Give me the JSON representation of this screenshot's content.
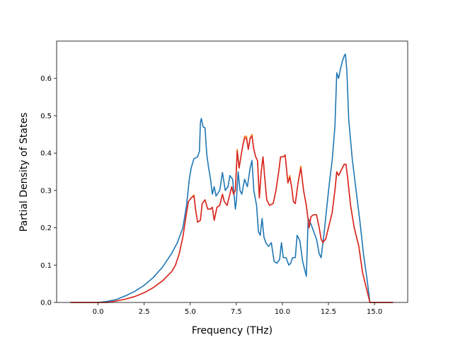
{
  "chart_data": {
    "type": "line",
    "title": "",
    "xlabel": "Frequency (THz)",
    "ylabel": "Partial Density of States",
    "xlim": [
      -2.25,
      16.8
    ],
    "ylim": [
      0.0,
      0.7
    ],
    "xticks": [
      0.0,
      2.5,
      5.0,
      7.5,
      10.0,
      12.5,
      15.0
    ],
    "xtick_labels": [
      "0.0",
      "2.5",
      "5.0",
      "7.5",
      "10.0",
      "12.5",
      "15.0"
    ],
    "yticks": [
      0.0,
      0.1,
      0.2,
      0.3,
      0.4,
      0.5,
      0.6
    ],
    "ytick_labels": [
      "0.0",
      "0.1",
      "0.2",
      "0.3",
      "0.4",
      "0.5",
      "0.6"
    ],
    "grid": false,
    "legend": false,
    "series": [
      {
        "color": "#1f77b4",
        "points": [
          [
            -1.5,
            0.0
          ],
          [
            0.0,
            0.0
          ],
          [
            0.5,
            0.003
          ],
          [
            1.0,
            0.008
          ],
          [
            1.5,
            0.018
          ],
          [
            2.0,
            0.03
          ],
          [
            2.5,
            0.046
          ],
          [
            3.0,
            0.067
          ],
          [
            3.5,
            0.095
          ],
          [
            4.0,
            0.132
          ],
          [
            4.3,
            0.16
          ],
          [
            4.6,
            0.2
          ],
          [
            4.8,
            0.26
          ],
          [
            4.95,
            0.33
          ],
          [
            5.05,
            0.36
          ],
          [
            5.2,
            0.385
          ],
          [
            5.4,
            0.39
          ],
          [
            5.5,
            0.405
          ],
          [
            5.55,
            0.48
          ],
          [
            5.6,
            0.493
          ],
          [
            5.7,
            0.47
          ],
          [
            5.8,
            0.468
          ],
          [
            5.9,
            0.395
          ],
          [
            6.0,
            0.36
          ],
          [
            6.1,
            0.33
          ],
          [
            6.2,
            0.29
          ],
          [
            6.3,
            0.31
          ],
          [
            6.4,
            0.285
          ],
          [
            6.6,
            0.3
          ],
          [
            6.75,
            0.348
          ],
          [
            6.9,
            0.3
          ],
          [
            7.05,
            0.31
          ],
          [
            7.15,
            0.34
          ],
          [
            7.3,
            0.33
          ],
          [
            7.45,
            0.25
          ],
          [
            7.5,
            0.27
          ],
          [
            7.6,
            0.35
          ],
          [
            7.7,
            0.3
          ],
          [
            7.8,
            0.29
          ],
          [
            7.95,
            0.33
          ],
          [
            8.1,
            0.31
          ],
          [
            8.25,
            0.36
          ],
          [
            8.35,
            0.38
          ],
          [
            8.45,
            0.3
          ],
          [
            8.6,
            0.26
          ],
          [
            8.7,
            0.19
          ],
          [
            8.8,
            0.18
          ],
          [
            8.9,
            0.225
          ],
          [
            9.0,
            0.175
          ],
          [
            9.1,
            0.16
          ],
          [
            9.25,
            0.15
          ],
          [
            9.4,
            0.16
          ],
          [
            9.55,
            0.11
          ],
          [
            9.7,
            0.105
          ],
          [
            9.85,
            0.115
          ],
          [
            9.95,
            0.16
          ],
          [
            10.05,
            0.12
          ],
          [
            10.2,
            0.12
          ],
          [
            10.35,
            0.1
          ],
          [
            10.45,
            0.105
          ],
          [
            10.55,
            0.12
          ],
          [
            10.7,
            0.12
          ],
          [
            10.8,
            0.18
          ],
          [
            10.95,
            0.165
          ],
          [
            11.1,
            0.11
          ],
          [
            11.2,
            0.09
          ],
          [
            11.3,
            0.07
          ],
          [
            11.4,
            0.225
          ],
          [
            11.55,
            0.21
          ],
          [
            11.7,
            0.19
          ],
          [
            11.85,
            0.17
          ],
          [
            12.0,
            0.13
          ],
          [
            12.1,
            0.12
          ],
          [
            12.25,
            0.18
          ],
          [
            12.4,
            0.25
          ],
          [
            12.55,
            0.32
          ],
          [
            12.7,
            0.38
          ],
          [
            12.85,
            0.47
          ],
          [
            12.95,
            0.615
          ],
          [
            13.05,
            0.6
          ],
          [
            13.15,
            0.625
          ],
          [
            13.25,
            0.645
          ],
          [
            13.35,
            0.66
          ],
          [
            13.42,
            0.665
          ],
          [
            13.5,
            0.62
          ],
          [
            13.6,
            0.49
          ],
          [
            13.8,
            0.38
          ],
          [
            14.0,
            0.3
          ],
          [
            14.2,
            0.22
          ],
          [
            14.4,
            0.13
          ],
          [
            14.6,
            0.06
          ],
          [
            14.75,
            0.0
          ],
          [
            16.0,
            0.0
          ]
        ]
      },
      {
        "color": "#ff7f0e",
        "points": [
          [
            -1.5,
            0.0
          ],
          [
            0.5,
            0.0
          ],
          [
            1.0,
            0.004
          ],
          [
            1.5,
            0.009
          ],
          [
            2.0,
            0.016
          ],
          [
            2.5,
            0.026
          ],
          [
            3.0,
            0.04
          ],
          [
            3.5,
            0.058
          ],
          [
            4.0,
            0.083
          ],
          [
            4.2,
            0.1
          ],
          [
            4.4,
            0.13
          ],
          [
            4.6,
            0.175
          ],
          [
            4.8,
            0.24
          ],
          [
            4.9,
            0.27
          ],
          [
            5.05,
            0.28
          ],
          [
            5.2,
            0.288
          ],
          [
            5.3,
            0.245
          ],
          [
            5.4,
            0.215
          ],
          [
            5.55,
            0.22
          ],
          [
            5.65,
            0.265
          ],
          [
            5.8,
            0.275
          ],
          [
            5.95,
            0.25
          ],
          [
            6.1,
            0.25
          ],
          [
            6.2,
            0.255
          ],
          [
            6.3,
            0.22
          ],
          [
            6.45,
            0.255
          ],
          [
            6.6,
            0.26
          ],
          [
            6.75,
            0.29
          ],
          [
            6.85,
            0.27
          ],
          [
            7.0,
            0.26
          ],
          [
            7.15,
            0.29
          ],
          [
            7.25,
            0.31
          ],
          [
            7.35,
            0.29
          ],
          [
            7.45,
            0.3
          ],
          [
            7.55,
            0.41
          ],
          [
            7.65,
            0.36
          ],
          [
            7.75,
            0.39
          ],
          [
            7.85,
            0.42
          ],
          [
            7.95,
            0.445
          ],
          [
            8.05,
            0.445
          ],
          [
            8.15,
            0.41
          ],
          [
            8.25,
            0.44
          ],
          [
            8.35,
            0.45
          ],
          [
            8.45,
            0.41
          ],
          [
            8.55,
            0.39
          ],
          [
            8.65,
            0.38
          ],
          [
            8.75,
            0.28
          ],
          [
            8.85,
            0.35
          ],
          [
            8.95,
            0.39
          ],
          [
            9.05,
            0.33
          ],
          [
            9.15,
            0.275
          ],
          [
            9.3,
            0.26
          ],
          [
            9.5,
            0.265
          ],
          [
            9.65,
            0.3
          ],
          [
            9.8,
            0.35
          ],
          [
            9.9,
            0.39
          ],
          [
            10.05,
            0.39
          ],
          [
            10.15,
            0.395
          ],
          [
            10.3,
            0.32
          ],
          [
            10.4,
            0.34
          ],
          [
            10.5,
            0.31
          ],
          [
            10.6,
            0.27
          ],
          [
            10.7,
            0.265
          ],
          [
            10.85,
            0.32
          ],
          [
            11.0,
            0.365
          ],
          [
            11.15,
            0.3
          ],
          [
            11.3,
            0.26
          ],
          [
            11.45,
            0.2
          ],
          [
            11.55,
            0.23
          ],
          [
            11.7,
            0.235
          ],
          [
            11.85,
            0.235
          ],
          [
            12.0,
            0.2
          ],
          [
            12.1,
            0.17
          ],
          [
            12.2,
            0.16
          ],
          [
            12.35,
            0.17
          ],
          [
            12.5,
            0.2
          ],
          [
            12.7,
            0.24
          ],
          [
            12.85,
            0.3
          ],
          [
            12.95,
            0.35
          ],
          [
            13.05,
            0.34
          ],
          [
            13.2,
            0.355
          ],
          [
            13.35,
            0.37
          ],
          [
            13.45,
            0.37
          ],
          [
            13.55,
            0.33
          ],
          [
            13.7,
            0.26
          ],
          [
            13.9,
            0.2
          ],
          [
            14.15,
            0.15
          ],
          [
            14.35,
            0.08
          ],
          [
            14.5,
            0.05
          ],
          [
            14.65,
            0.02
          ],
          [
            14.75,
            0.0
          ],
          [
            16.0,
            0.0
          ]
        ]
      },
      {
        "color": "#d62728",
        "points": [
          [
            -1.5,
            0.0
          ],
          [
            0.5,
            0.0
          ],
          [
            1.0,
            0.004
          ],
          [
            1.5,
            0.009
          ],
          [
            2.0,
            0.016
          ],
          [
            2.5,
            0.026
          ],
          [
            3.0,
            0.04
          ],
          [
            3.5,
            0.058
          ],
          [
            4.0,
            0.083
          ],
          [
            4.2,
            0.1
          ],
          [
            4.4,
            0.13
          ],
          [
            4.6,
            0.175
          ],
          [
            4.8,
            0.24
          ],
          [
            4.9,
            0.27
          ],
          [
            5.05,
            0.28
          ],
          [
            5.2,
            0.285
          ],
          [
            5.3,
            0.245
          ],
          [
            5.4,
            0.215
          ],
          [
            5.55,
            0.22
          ],
          [
            5.65,
            0.265
          ],
          [
            5.8,
            0.275
          ],
          [
            5.95,
            0.25
          ],
          [
            6.1,
            0.25
          ],
          [
            6.2,
            0.255
          ],
          [
            6.3,
            0.22
          ],
          [
            6.45,
            0.255
          ],
          [
            6.6,
            0.26
          ],
          [
            6.75,
            0.29
          ],
          [
            6.85,
            0.27
          ],
          [
            7.0,
            0.26
          ],
          [
            7.15,
            0.29
          ],
          [
            7.25,
            0.31
          ],
          [
            7.35,
            0.29
          ],
          [
            7.45,
            0.3
          ],
          [
            7.55,
            0.405
          ],
          [
            7.65,
            0.36
          ],
          [
            7.75,
            0.39
          ],
          [
            7.85,
            0.42
          ],
          [
            7.95,
            0.44
          ],
          [
            8.05,
            0.44
          ],
          [
            8.15,
            0.41
          ],
          [
            8.25,
            0.44
          ],
          [
            8.35,
            0.445
          ],
          [
            8.45,
            0.41
          ],
          [
            8.55,
            0.39
          ],
          [
            8.65,
            0.38
          ],
          [
            8.75,
            0.28
          ],
          [
            8.85,
            0.35
          ],
          [
            8.95,
            0.39
          ],
          [
            9.05,
            0.33
          ],
          [
            9.15,
            0.275
          ],
          [
            9.3,
            0.26
          ],
          [
            9.5,
            0.265
          ],
          [
            9.65,
            0.3
          ],
          [
            9.8,
            0.35
          ],
          [
            9.9,
            0.39
          ],
          [
            10.05,
            0.39
          ],
          [
            10.15,
            0.395
          ],
          [
            10.3,
            0.32
          ],
          [
            10.4,
            0.335
          ],
          [
            10.5,
            0.31
          ],
          [
            10.6,
            0.27
          ],
          [
            10.7,
            0.265
          ],
          [
            10.85,
            0.32
          ],
          [
            11.0,
            0.36
          ],
          [
            11.15,
            0.3
          ],
          [
            11.3,
            0.26
          ],
          [
            11.45,
            0.2
          ],
          [
            11.55,
            0.23
          ],
          [
            11.7,
            0.235
          ],
          [
            11.85,
            0.235
          ],
          [
            12.0,
            0.2
          ],
          [
            12.1,
            0.17
          ],
          [
            12.2,
            0.16
          ],
          [
            12.35,
            0.17
          ],
          [
            12.5,
            0.2
          ],
          [
            12.7,
            0.24
          ],
          [
            12.85,
            0.3
          ],
          [
            12.95,
            0.35
          ],
          [
            13.05,
            0.34
          ],
          [
            13.2,
            0.355
          ],
          [
            13.35,
            0.37
          ],
          [
            13.45,
            0.37
          ],
          [
            13.55,
            0.33
          ],
          [
            13.7,
            0.26
          ],
          [
            13.9,
            0.2
          ],
          [
            14.15,
            0.15
          ],
          [
            14.35,
            0.08
          ],
          [
            14.5,
            0.05
          ],
          [
            14.65,
            0.02
          ],
          [
            14.75,
            0.0
          ],
          [
            16.0,
            0.0
          ]
        ]
      }
    ]
  }
}
